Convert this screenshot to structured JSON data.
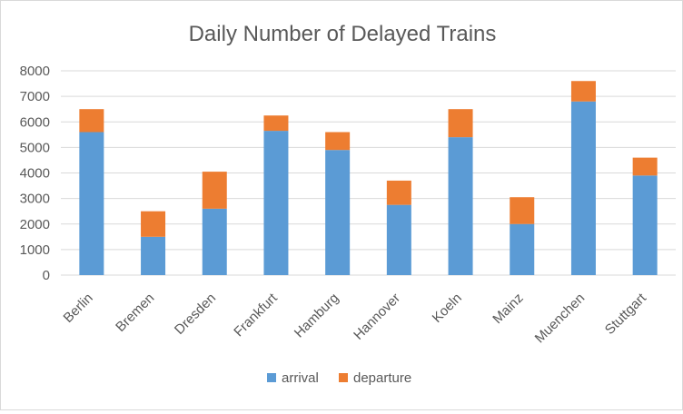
{
  "chart_data": {
    "type": "bar",
    "stacked": true,
    "title": "Daily Number of Delayed Trains",
    "xlabel": "",
    "ylabel": "",
    "categories": [
      "Berlin",
      "Bremen",
      "Dresden",
      "Frankfurt",
      "Hamburg",
      "Hannover",
      "Koeln",
      "Mainz",
      "Muenchen",
      "Stuttgart"
    ],
    "series": [
      {
        "name": "arrival",
        "color": "#5b9bd5",
        "values": [
          5600,
          1500,
          2600,
          5650,
          4900,
          2750,
          5400,
          2000,
          6800,
          3900
        ]
      },
      {
        "name": "departure",
        "color": "#ed7d31",
        "values": [
          900,
          1000,
          1450,
          600,
          700,
          950,
          1100,
          1050,
          800,
          700
        ]
      }
    ],
    "ylim": [
      0,
      8000
    ],
    "yticks": [
      "0",
      "1000",
      "2000",
      "3000",
      "4000",
      "5000",
      "6000",
      "7000",
      "8000"
    ],
    "grid": true,
    "legend": "bottom"
  }
}
